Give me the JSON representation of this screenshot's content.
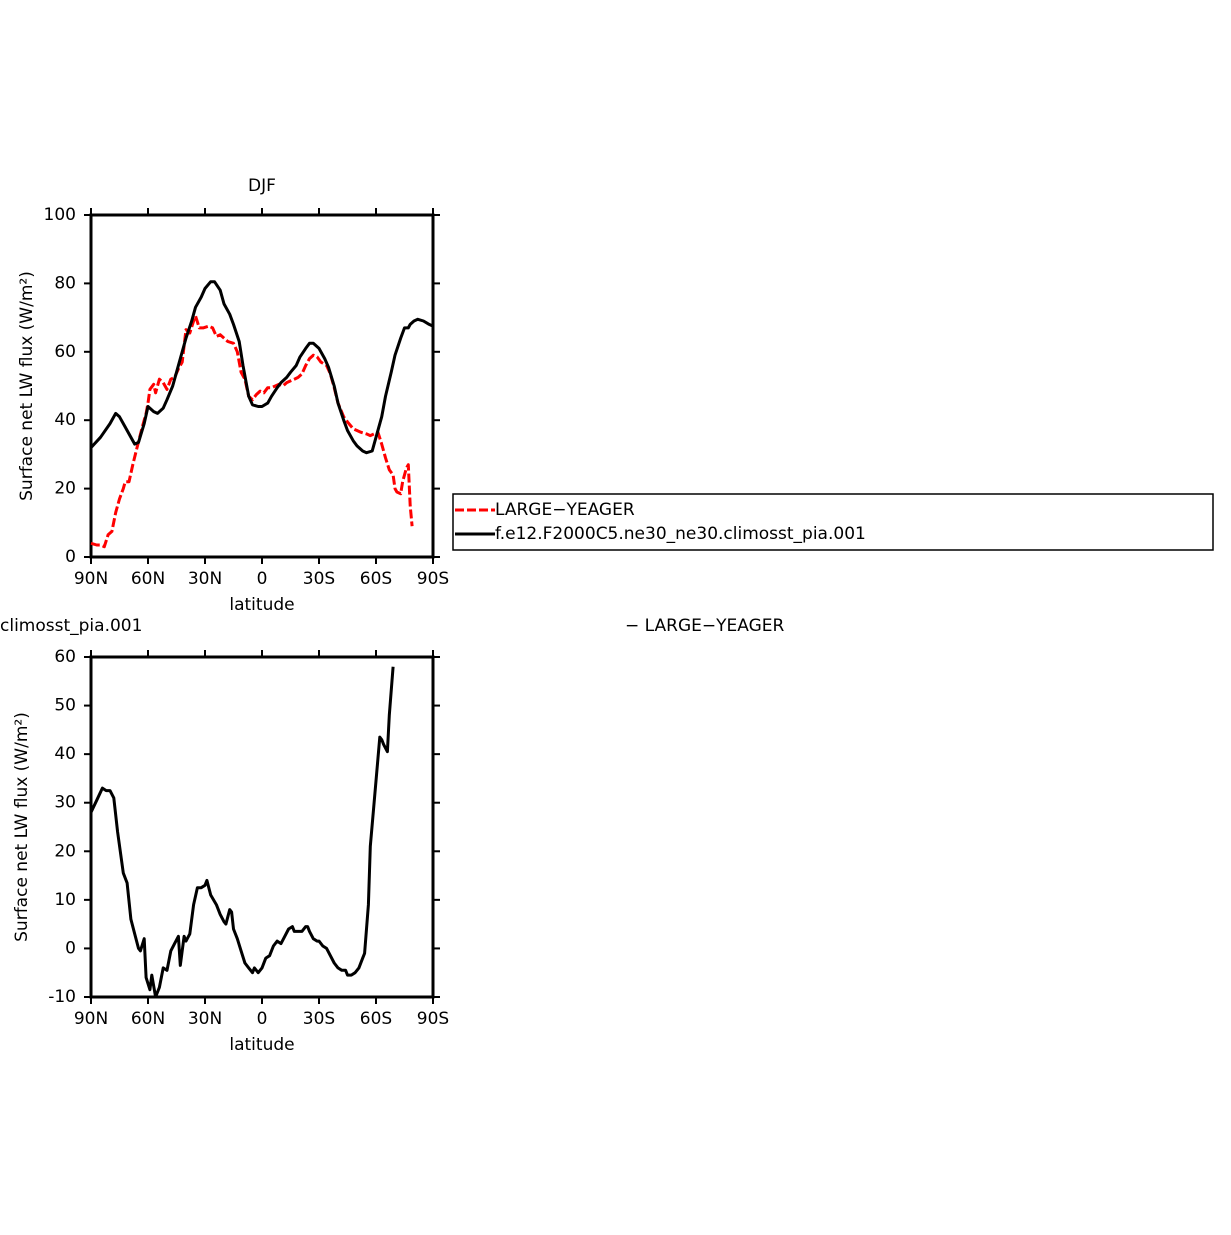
{
  "chart_data": [
    {
      "type": "line",
      "title": "DJF",
      "xlabel": "latitude",
      "ylabel": "Surface net LW flux (W/m²)",
      "xlim": [
        90,
        -90
      ],
      "xticks": [
        {
          "value": 90,
          "label": "90N"
        },
        {
          "value": 60,
          "label": "60N"
        },
        {
          "value": 30,
          "label": "30N"
        },
        0,
        {
          "value": -30,
          "label": "30S"
        },
        {
          "value": -60,
          "label": "60S"
        },
        {
          "value": -90,
          "label": "90S"
        }
      ],
      "ylim": [
        0,
        100
      ],
      "yticks": [
        0,
        20,
        40,
        60,
        80,
        100
      ],
      "legend": "right",
      "series": [
        {
          "name": "LARGE−YEAGER",
          "color": "#ff0000",
          "dashed": true,
          "x": [
            90,
            87,
            85,
            83,
            81,
            79,
            77,
            75,
            73,
            72,
            70,
            68,
            66,
            63,
            61,
            60,
            59,
            57,
            56,
            54,
            52,
            50,
            48,
            46,
            44,
            42,
            40,
            38,
            36,
            35,
            33,
            31,
            28,
            26,
            24,
            22,
            20,
            18,
            15,
            13,
            11,
            9,
            7,
            5,
            3,
            1,
            -1,
            -3,
            -5,
            -7,
            -9,
            -11,
            -13,
            -15,
            -17,
            -19,
            -21,
            -23,
            -25,
            -27,
            -29,
            -31,
            -34,
            -36,
            -38,
            -40,
            -43,
            -45,
            -48,
            -50,
            -52,
            -55,
            -57,
            -59,
            -61,
            -63,
            -65,
            -67,
            -69,
            -70,
            -71,
            -73,
            -74,
            -76,
            -77,
            -78,
            -79
          ],
          "values": [
            4,
            3.5,
            3.5,
            3,
            6.5,
            7.5,
            13,
            17,
            20,
            22,
            22,
            27,
            31.5,
            38,
            42,
            45,
            49,
            50.5,
            48,
            52,
            51,
            49,
            52,
            52.5,
            55,
            57,
            66.5,
            65.5,
            69,
            70.5,
            67,
            67,
            67.5,
            67,
            64.5,
            65,
            64,
            63,
            62.5,
            60,
            54,
            52,
            47,
            46,
            47.5,
            48.5,
            48,
            49.5,
            49.5,
            50,
            50.5,
            50,
            51,
            51.5,
            52,
            52.5,
            53.5,
            56,
            58,
            59,
            58.5,
            57,
            56,
            53.5,
            49.5,
            45,
            41,
            39.5,
            37.5,
            37,
            36.5,
            36,
            35.5,
            36,
            36.5,
            33,
            29,
            25.5,
            24,
            20,
            19,
            18.5,
            22,
            26,
            27,
            15,
            9
          ]
        },
        {
          "name": "f.e12.F2000C5.ne30_ne30.climosst_pia.001",
          "color": "#000000",
          "dashed": false,
          "x": [
            90,
            85,
            80,
            77,
            75,
            72,
            70,
            67,
            65,
            62,
            60,
            57,
            55,
            52,
            50,
            47,
            45,
            42,
            40,
            37,
            35,
            32,
            30,
            27,
            25,
            22,
            20,
            17,
            15,
            12,
            10,
            7,
            5,
            2,
            0,
            -3,
            -5,
            -8,
            -10,
            -13,
            -15,
            -18,
            -20,
            -23,
            -25,
            -27,
            -30,
            -33,
            -35,
            -38,
            -40,
            -43,
            -45,
            -48,
            -50,
            -53,
            -55,
            -58,
            -60,
            -63,
            -65,
            -68,
            -70,
            -73,
            -75,
            -77,
            -78,
            -80,
            -82,
            -85,
            -88,
            -90
          ],
          "values": [
            32,
            35,
            39,
            42,
            41,
            38,
            36,
            33,
            33.5,
            39,
            44,
            42.5,
            42,
            43.5,
            46,
            50,
            54,
            60,
            64,
            69,
            73,
            76,
            78.5,
            80.5,
            80.5,
            78,
            74,
            71,
            68,
            63,
            56,
            47,
            44.5,
            44,
            44,
            45,
            47,
            49.5,
            51,
            52.5,
            54,
            56,
            58.5,
            61,
            62.5,
            62.5,
            61,
            58,
            55.5,
            50,
            45,
            40,
            37,
            34,
            32.5,
            31,
            30.5,
            31,
            35,
            41,
            47,
            54,
            59,
            64,
            67,
            67,
            68,
            69,
            69.5,
            69,
            68,
            67.5
          ]
        }
      ]
    },
    {
      "type": "line",
      "title_fragments": [
        "climosst_pia.001",
        "− LARGE−YEAGER"
      ],
      "xlabel": "latitude",
      "ylabel": "Surface net LW flux (W/m²)",
      "xlim": [
        90,
        -90
      ],
      "xticks": [
        {
          "value": 90,
          "label": "90N"
        },
        {
          "value": 60,
          "label": "60N"
        },
        {
          "value": 30,
          "label": "30N"
        },
        0,
        {
          "value": -30,
          "label": "30S"
        },
        {
          "value": -60,
          "label": "60S"
        },
        {
          "value": -90,
          "label": "90S"
        }
      ],
      "ylim": [
        -10,
        60
      ],
      "yticks": [
        -10,
        0,
        10,
        20,
        30,
        40,
        50,
        60
      ],
      "series": [
        {
          "color": "#000000",
          "dashed": false,
          "x": [
            90,
            87,
            84,
            82,
            80,
            78,
            76,
            73,
            71,
            69,
            67,
            65,
            64,
            62,
            61,
            59,
            58,
            56,
            54,
            52,
            50,
            48,
            46,
            44,
            43,
            41,
            40,
            38,
            36,
            34,
            32,
            30,
            29,
            27,
            24,
            22,
            20,
            19,
            17,
            16,
            15,
            13,
            11,
            9,
            7,
            5,
            4,
            2,
            0,
            -2,
            -4,
            -6,
            -8,
            -10,
            -12,
            -14,
            -16,
            -17,
            -19,
            -21,
            -23,
            -24,
            -25,
            -27,
            -29,
            -30,
            -32,
            -34,
            -36,
            -38,
            -40,
            -42,
            -44,
            -45,
            -47,
            -49,
            -51,
            -53,
            -54,
            -56,
            -57,
            -59,
            -61,
            -62,
            -63,
            -64,
            -66,
            -67,
            -69
          ],
          "values": [
            28,
            30.5,
            33,
            32.5,
            32.5,
            31,
            24,
            15.5,
            13.5,
            6,
            3,
            0,
            -0.5,
            2,
            -6,
            -8.5,
            -5.5,
            -10,
            -8,
            -4,
            -4.5,
            -0.5,
            1,
            2.5,
            -3.5,
            2.5,
            1.5,
            3,
            9,
            12.5,
            12.5,
            13,
            14,
            11,
            9,
            7,
            5.5,
            5,
            8,
            7.5,
            4,
            2,
            -0.5,
            -3,
            -4,
            -5,
            -4,
            -5,
            -4,
            -2,
            -1.5,
            0.5,
            1.5,
            1,
            2.5,
            4,
            4.5,
            3.5,
            3.5,
            3.5,
            4.5,
            4.5,
            3.5,
            2,
            1.5,
            1.5,
            0.5,
            0,
            -1.5,
            -3,
            -4,
            -4.5,
            -4.5,
            -5.5,
            -5.5,
            -5,
            -4,
            -2,
            -1,
            9,
            21,
            30,
            39,
            43.5,
            43,
            42,
            40.5,
            48,
            58
          ]
        }
      ]
    }
  ]
}
